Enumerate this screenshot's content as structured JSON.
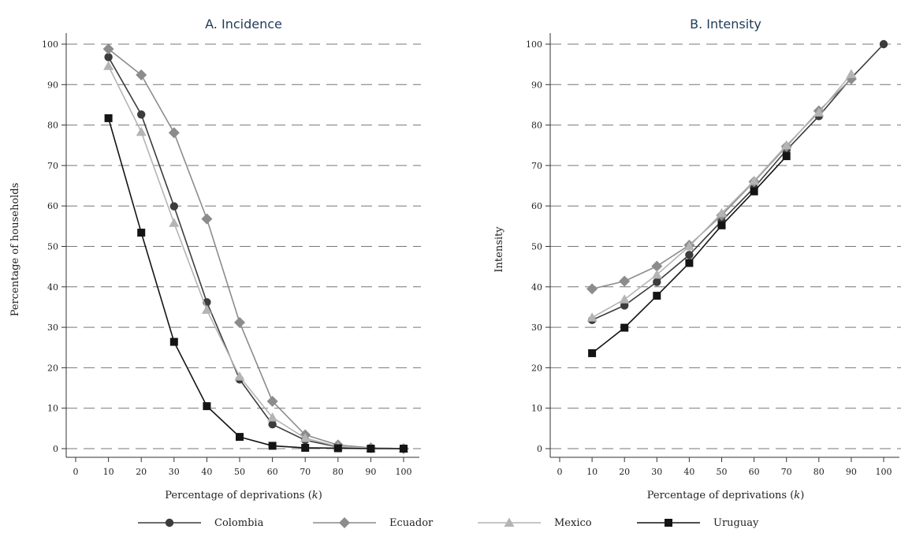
{
  "legend": {
    "items": [
      {
        "name": "Colombia",
        "color": "#3c3c3c",
        "marker": "circle"
      },
      {
        "name": "Ecuador",
        "color": "#8c8c8c",
        "marker": "diamond"
      },
      {
        "name": "Mexico",
        "color": "#b4b4b4",
        "marker": "triangle"
      },
      {
        "name": "Uruguay",
        "color": "#141414",
        "marker": "square"
      }
    ]
  },
  "chart_data": [
    {
      "type": "line",
      "title": "A. Incidence",
      "xlabel": "Percentage of deprivations (k)",
      "ylabel": "Percentage of households",
      "xlim": [
        0,
        100
      ],
      "ylim": [
        0,
        100
      ],
      "xticks": [
        0,
        10,
        20,
        30,
        40,
        50,
        60,
        70,
        80,
        90,
        100
      ],
      "yticks": [
        0,
        10,
        20,
        30,
        40,
        50,
        60,
        70,
        80,
        90,
        100
      ],
      "grid": "horizontal dashed",
      "x": [
        10,
        20,
        30,
        40,
        50,
        60,
        70,
        80,
        90,
        100
      ],
      "series": [
        {
          "name": "Colombia",
          "values": [
            96.8,
            82.6,
            59.9,
            36.2,
            17.1,
            6.0,
            2.1,
            0.4,
            0.1,
            0
          ]
        },
        {
          "name": "Ecuador",
          "values": [
            98.8,
            92.4,
            78.1,
            56.8,
            31.2,
            11.7,
            3.4,
            0.9,
            0.2,
            0
          ]
        },
        {
          "name": "Mexico",
          "values": [
            94.6,
            78.3,
            55.8,
            34.3,
            17.8,
            7.7,
            2.6,
            0.5,
            0.1,
            0
          ]
        },
        {
          "name": "Uruguay",
          "values": [
            81.7,
            53.4,
            26.4,
            10.5,
            2.9,
            0.7,
            0.2,
            0.1,
            0.0,
            0
          ]
        }
      ]
    },
    {
      "type": "line",
      "title": "B. Intensity",
      "xlabel": "Percentage of deprivations (k)",
      "ylabel": "Intensity",
      "xlim": [
        0,
        100
      ],
      "ylim": [
        0,
        100
      ],
      "xticks": [
        0,
        10,
        20,
        30,
        40,
        50,
        60,
        70,
        80,
        90,
        100
      ],
      "yticks": [
        0,
        10,
        20,
        30,
        40,
        50,
        60,
        70,
        80,
        90,
        100
      ],
      "grid": "horizontal dashed",
      "series": [
        {
          "name": "Colombia",
          "x": [
            10,
            20,
            30,
            40,
            50,
            60,
            70,
            80,
            90,
            100
          ],
          "values": [
            31.8,
            35.4,
            41.2,
            47.9,
            56.3,
            64.5,
            73.8,
            82.2,
            91.6,
            100
          ]
        },
        {
          "name": "Ecuador",
          "x": [
            10,
            20,
            30,
            40,
            50,
            60,
            70,
            80,
            90
          ],
          "values": [
            39.5,
            41.4,
            45.1,
            50.3,
            57.7,
            66.0,
            74.7,
            83.5,
            91.4
          ]
        },
        {
          "name": "Mexico",
          "x": [
            10,
            20,
            30,
            40,
            50,
            60,
            70,
            80,
            90
          ],
          "values": [
            32.4,
            36.9,
            43.0,
            50.0,
            58.2,
            66.2,
            75.0,
            83.1,
            92.6
          ]
        },
        {
          "name": "Uruguay",
          "x": [
            10,
            20,
            30,
            40,
            50,
            60,
            70
          ],
          "values": [
            23.6,
            29.9,
            37.8,
            45.9,
            55.2,
            63.6,
            72.3
          ]
        }
      ]
    }
  ]
}
